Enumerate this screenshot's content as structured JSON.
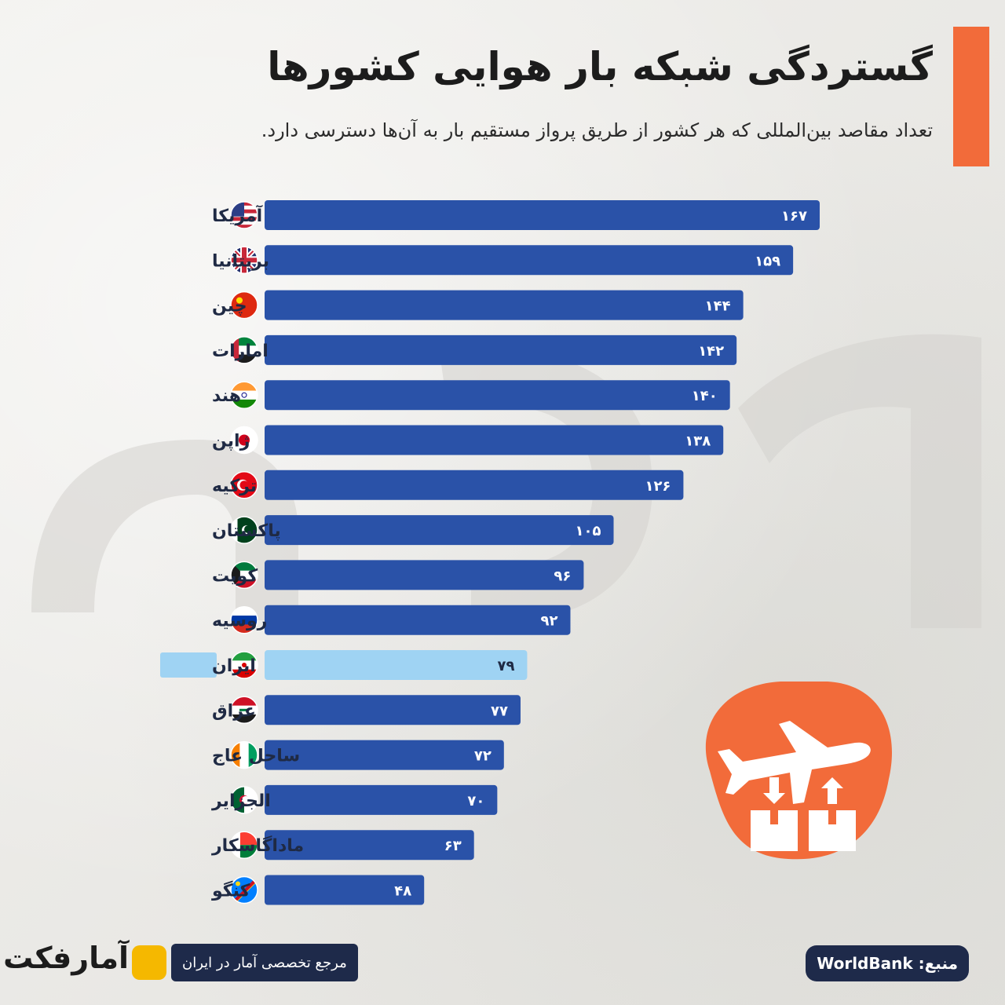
{
  "header": {
    "title": "گستردگی شبکه بار هوایی کشورها",
    "subtitle": "تعداد مقاصد بین‌المللی که هر کشور از طریق پرواز مستقیم بار به آن‌ها دسترسی دارد."
  },
  "chart_data": {
    "type": "bar",
    "orientation": "horizontal",
    "categories": [
      "آمریکا",
      "بریتانیا",
      "چین",
      "امارات",
      "هند",
      "ژاپن",
      "ترکیه",
      "پاکستان",
      "کویت",
      "روسیه",
      "ایران",
      "عراق",
      "ساحل عاج",
      "الجزایر",
      "ماداگاسکار",
      "کنگو"
    ],
    "values": [
      167,
      159,
      144,
      142,
      140,
      138,
      126,
      105,
      96,
      92,
      79,
      77,
      72,
      70,
      63,
      48
    ],
    "value_labels": [
      "۱۶۷",
      "۱۵۹",
      "۱۴۴",
      "۱۴۲",
      "۱۴۰",
      "۱۳۸",
      "۱۲۶",
      "۱۰۵",
      "۹۶",
      "۹۲",
      "۷۹",
      "۷۷",
      "۷۲",
      "۷۰",
      "۶۳",
      "۴۸"
    ],
    "flags": [
      "usa-flag-icon",
      "uk-flag-icon",
      "china-flag-icon",
      "uae-flag-icon",
      "india-flag-icon",
      "japan-flag-icon",
      "turkey-flag-icon",
      "pakistan-flag-icon",
      "kuwait-flag-icon",
      "russia-flag-icon",
      "iran-flag-icon",
      "iraq-flag-icon",
      "ivory-coast-flag-icon",
      "algeria-flag-icon",
      "madagascar-flag-icon",
      "congo-flag-icon"
    ],
    "highlight": "ایران",
    "xlim": [
      0,
      167
    ],
    "grid": false,
    "colors": {
      "bar": "#2a52a8",
      "highlight": "#9fd3f3",
      "accent": "#f26b3a"
    }
  },
  "footer": {
    "source_label": "منبع: WorldBank",
    "reference_label": "مرجع تخصصی آمار در ایران",
    "brand_name": "آمارفکت",
    "icons": [
      "cargo-plane-icon",
      "package-icon"
    ]
  }
}
